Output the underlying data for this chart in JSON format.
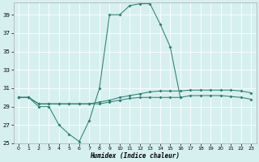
{
  "xlabel": "Humidex (Indice chaleur)",
  "x": [
    0,
    1,
    2,
    3,
    4,
    5,
    6,
    7,
    8,
    9,
    10,
    11,
    12,
    13,
    14,
    15,
    16,
    17,
    18,
    19,
    20,
    21,
    22,
    23
  ],
  "line1_y": [
    30,
    30,
    29,
    29,
    27,
    26,
    25.2,
    27.5,
    31,
    39,
    39,
    40,
    40.2,
    40.2,
    38,
    35.5,
    30,
    null,
    null,
    null,
    null,
    null,
    null,
    null
  ],
  "line2_y": [
    30,
    30,
    29.3,
    29.3,
    29.3,
    29.3,
    29.3,
    29.3,
    29.5,
    29.7,
    30,
    30.2,
    30.4,
    30.6,
    30.7,
    30.7,
    30.7,
    30.8,
    30.8,
    30.8,
    30.8,
    30.8,
    30.7,
    30.5
  ],
  "line3_y": [
    30,
    30,
    29.3,
    29.3,
    29.3,
    29.3,
    29.3,
    29.3,
    29.3,
    29.5,
    29.7,
    29.9,
    30.0,
    30.0,
    30.0,
    30.0,
    30.0,
    30.2,
    30.2,
    30.2,
    30.2,
    30.1,
    30.0,
    29.8
  ],
  "color": "#2e7f72",
  "bg_color": "#d6f0ef",
  "grid_color": "#ffffff",
  "ylim": [
    25,
    40
  ],
  "xlim": [
    -0.5,
    23.5
  ],
  "yticks": [
    25,
    27,
    29,
    31,
    33,
    35,
    37,
    39
  ],
  "xticks": [
    0,
    1,
    2,
    3,
    4,
    5,
    6,
    7,
    8,
    9,
    10,
    11,
    12,
    13,
    14,
    15,
    16,
    17,
    18,
    19,
    20,
    21,
    22,
    23
  ]
}
